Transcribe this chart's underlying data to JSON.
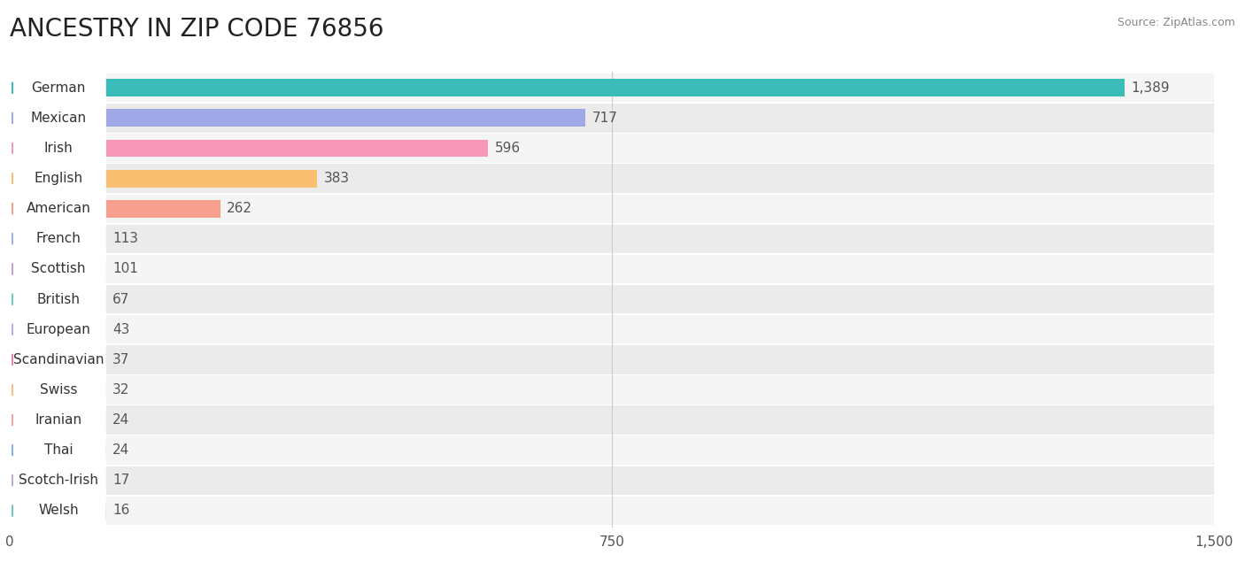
{
  "title": "ANCESTRY IN ZIP CODE 76856",
  "source": "Source: ZipAtlas.com",
  "categories": [
    "German",
    "Mexican",
    "Irish",
    "English",
    "American",
    "French",
    "Scottish",
    "British",
    "European",
    "Scandinavian",
    "Swiss",
    "Iranian",
    "Thai",
    "Scotch-Irish",
    "Welsh"
  ],
  "values": [
    1389,
    717,
    596,
    383,
    262,
    113,
    101,
    67,
    43,
    37,
    32,
    24,
    24,
    17,
    16
  ],
  "colors": [
    "#3bbcb8",
    "#a0a8e8",
    "#f898b8",
    "#f8c070",
    "#f8a090",
    "#a0b0f0",
    "#c0a0d8",
    "#70d0c0",
    "#b0b0f0",
    "#f880a8",
    "#f8c080",
    "#f8a0a0",
    "#88b0e8",
    "#c0a8d8",
    "#70c8c0"
  ],
  "bar_bg_even": "#f5f5f5",
  "bar_bg_odd": "#ebebeb",
  "xlim_max": 1500,
  "xticks": [
    0,
    750,
    1500
  ],
  "title_fontsize": 20,
  "label_fontsize": 11,
  "value_fontsize": 11,
  "background_color": "#ffffff",
  "min_bar_display": 120
}
